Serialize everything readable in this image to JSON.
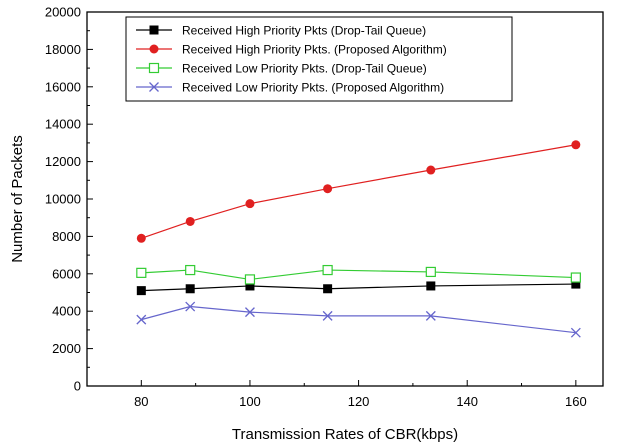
{
  "chart_data": {
    "type": "line",
    "xlabel": "Transmission Rates of CBR(kbps)",
    "ylabel": "Number of Packets",
    "xlim": [
      70,
      165
    ],
    "ylim": [
      0,
      20000
    ],
    "x_ticks": [
      80,
      100,
      120,
      140,
      160
    ],
    "y_ticks": [
      0,
      2000,
      4000,
      6000,
      8000,
      10000,
      12000,
      14000,
      16000,
      18000,
      20000
    ],
    "grid": false,
    "legend_position": "top-left",
    "x": [
      80,
      89,
      100,
      114.3,
      133.3,
      160
    ],
    "series": [
      {
        "name": "Received High Priority Pkts (Drop-Tail Queue)",
        "color": "#000000",
        "marker": "filled-square",
        "values": [
          5100,
          5200,
          5350,
          5200,
          5350,
          5450
        ]
      },
      {
        "name": "Received High Priority Pkts. (Proposed Algorithm)",
        "color": "#e02020",
        "marker": "filled-circle",
        "values": [
          7900,
          8800,
          9750,
          10550,
          11550,
          12900
        ]
      },
      {
        "name": "Received Low Priority Pkts. (Drop-Tail Queue)",
        "color": "#33cc33",
        "marker": "open-square",
        "values": [
          6050,
          6200,
          5700,
          6200,
          6100,
          5800
        ]
      },
      {
        "name": "Received Low Priority Pkts. (Proposed Algorithm)",
        "color": "#6666cc",
        "marker": "x",
        "values": [
          3550,
          4250,
          3950,
          3750,
          3750,
          2850
        ]
      }
    ]
  }
}
